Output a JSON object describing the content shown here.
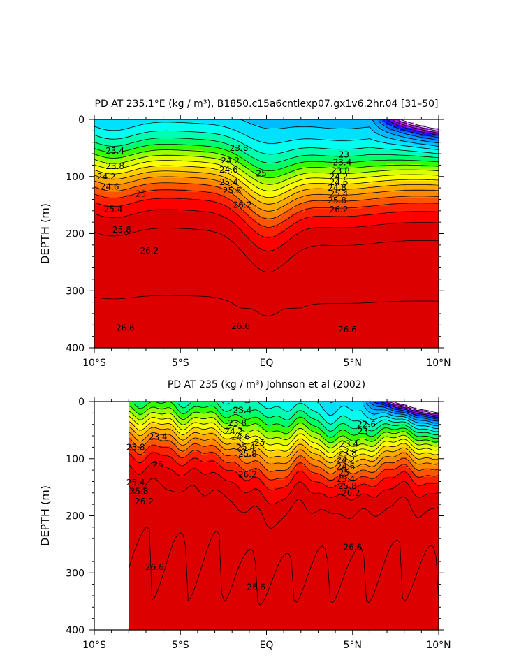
{
  "colors": {
    "palette": [
      "#ffffff",
      "#dd99ff",
      "#aa22dd",
      "#7700ff",
      "#0022ff",
      "#0066ff",
      "#0099ff",
      "#00bbff",
      "#00e0ff",
      "#00ffee",
      "#00ffb0",
      "#00ff66",
      "#33ff00",
      "#99ff00",
      "#ddff00",
      "#ffff00",
      "#ffd000",
      "#ffaa00",
      "#ff8800",
      "#ff5500",
      "#ff2200",
      "#ff0000",
      "#dd0000"
    ],
    "ink": "#000000"
  },
  "chart_data": [
    {
      "type": "contour",
      "title": "PD AT 235.1°E (kg / m³), B1850.c15a6cntlexp07.gx1v6.2hr.04 [31–50]",
      "xlabel": "",
      "ylabel": "DEPTH (m)",
      "x_ticks": [
        "10°S",
        "5°S",
        "EQ",
        "5°N",
        "10°N"
      ],
      "y_ticks": [
        "0",
        "100",
        "200",
        "300",
        "400"
      ],
      "xlim": [
        -10,
        10
      ],
      "ylim": [
        400,
        0
      ],
      "x_start": -10,
      "contour_interval": 0.2,
      "levels": [
        "22",
        "22.2",
        "22.4",
        "22.6",
        "22.8",
        "23",
        "23.2",
        "23.4",
        "23.6",
        "23.8",
        "24",
        "24.2",
        "24.4",
        "24.6",
        "24.8",
        "25",
        "25.2",
        "25.4",
        "25.6",
        "25.8",
        "26",
        "26.2",
        "26.4",
        "26.6"
      ],
      "labels": [
        {
          "text": "23.4",
          "lat": -8.8,
          "depth": 55
        },
        {
          "text": "23.8",
          "lat": -8.8,
          "depth": 82
        },
        {
          "text": "24.2",
          "lat": -9.3,
          "depth": 100
        },
        {
          "text": "24.6",
          "lat": -9.1,
          "depth": 118
        },
        {
          "text": "25",
          "lat": -7.3,
          "depth": 130
        },
        {
          "text": "25.4",
          "lat": -8.9,
          "depth": 157
        },
        {
          "text": "25.8",
          "lat": -8.4,
          "depth": 193
        },
        {
          "text": "26.2",
          "lat": -6.8,
          "depth": 230
        },
        {
          "text": "26.6",
          "lat": -8.2,
          "depth": 365
        },
        {
          "text": "26.6",
          "lat": -1.5,
          "depth": 362
        },
        {
          "text": "26.6",
          "lat": 4.7,
          "depth": 368
        },
        {
          "text": "23.8",
          "lat": -1.6,
          "depth": 50
        },
        {
          "text": "24.2",
          "lat": -2.1,
          "depth": 72
        },
        {
          "text": "24.6",
          "lat": -2.2,
          "depth": 88
        },
        {
          "text": "25",
          "lat": -0.3,
          "depth": 95
        },
        {
          "text": "25.4",
          "lat": -2.2,
          "depth": 110
        },
        {
          "text": "25.8",
          "lat": -2.0,
          "depth": 125
        },
        {
          "text": "26.2",
          "lat": -1.4,
          "depth": 150
        },
        {
          "text": "23",
          "lat": 4.5,
          "depth": 62
        },
        {
          "text": "23.4",
          "lat": 4.4,
          "depth": 75
        },
        {
          "text": "23.8",
          "lat": 4.3,
          "depth": 90
        },
        {
          "text": "24.2",
          "lat": 4.2,
          "depth": 100
        },
        {
          "text": "24.6",
          "lat": 4.2,
          "depth": 110
        },
        {
          "text": "24.8",
          "lat": 4.1,
          "depth": 120
        },
        {
          "text": "25.4",
          "lat": 4.2,
          "depth": 130
        },
        {
          "text": "25.8",
          "lat": 4.1,
          "depth": 142
        },
        {
          "text": "26.2",
          "lat": 4.2,
          "depth": 158
        }
      ]
    },
    {
      "type": "contour",
      "title": "PD AT 235 (kg / m³) Johnson et al (2002)",
      "xlabel": "",
      "ylabel": "DEPTH (m)",
      "x_ticks": [
        "10°S",
        "5°S",
        "EQ",
        "5°N",
        "10°N"
      ],
      "y_ticks": [
        "0",
        "100",
        "200",
        "300",
        "400"
      ],
      "xlim": [
        -10,
        10
      ],
      "ylim": [
        400,
        0
      ],
      "x_start": -8,
      "contour_interval": 0.2,
      "levels": [
        "22",
        "22.2",
        "22.4",
        "22.6",
        "22.8",
        "23",
        "23.2",
        "23.4",
        "23.6",
        "23.8",
        "24",
        "24.2",
        "24.4",
        "24.6",
        "24.8",
        "25",
        "25.2",
        "25.4",
        "25.6",
        "25.8",
        "26",
        "26.2",
        "26.4",
        "26.6"
      ],
      "labels": [
        {
          "text": "23.4",
          "lat": -6.3,
          "depth": 62
        },
        {
          "text": "23.8",
          "lat": -7.6,
          "depth": 80
        },
        {
          "text": "25",
          "lat": -6.3,
          "depth": 110
        },
        {
          "text": "25.4",
          "lat": -7.6,
          "depth": 142
        },
        {
          "text": "25.8",
          "lat": -7.4,
          "depth": 157
        },
        {
          "text": "26.2",
          "lat": -7.1,
          "depth": 175
        },
        {
          "text": "26.6",
          "lat": -6.5,
          "depth": 290
        },
        {
          "text": "26.6",
          "lat": -0.6,
          "depth": 325
        },
        {
          "text": "26.6",
          "lat": 5.0,
          "depth": 255
        },
        {
          "text": "23.4",
          "lat": -1.4,
          "depth": 15
        },
        {
          "text": "23.8",
          "lat": -1.7,
          "depth": 38
        },
        {
          "text": "24.2",
          "lat": -1.9,
          "depth": 52
        },
        {
          "text": "24.6",
          "lat": -1.5,
          "depth": 62
        },
        {
          "text": "25",
          "lat": -0.4,
          "depth": 72
        },
        {
          "text": "25.4",
          "lat": -1.2,
          "depth": 80
        },
        {
          "text": "25.8",
          "lat": -1.1,
          "depth": 92
        },
        {
          "text": "26.2",
          "lat": -1.1,
          "depth": 128
        },
        {
          "text": "22.6",
          "lat": 5.8,
          "depth": 40
        },
        {
          "text": "23",
          "lat": 5.6,
          "depth": 52
        },
        {
          "text": "23.4",
          "lat": 4.8,
          "depth": 74
        },
        {
          "text": "23.8",
          "lat": 4.7,
          "depth": 90
        },
        {
          "text": "24.2",
          "lat": 4.6,
          "depth": 102
        },
        {
          "text": "24.6",
          "lat": 4.6,
          "depth": 114
        },
        {
          "text": "25",
          "lat": 4.5,
          "depth": 125
        },
        {
          "text": "25.4",
          "lat": 4.6,
          "depth": 136
        },
        {
          "text": "25.8",
          "lat": 4.7,
          "depth": 148
        },
        {
          "text": "26.2",
          "lat": 4.9,
          "depth": 160
        }
      ]
    }
  ]
}
